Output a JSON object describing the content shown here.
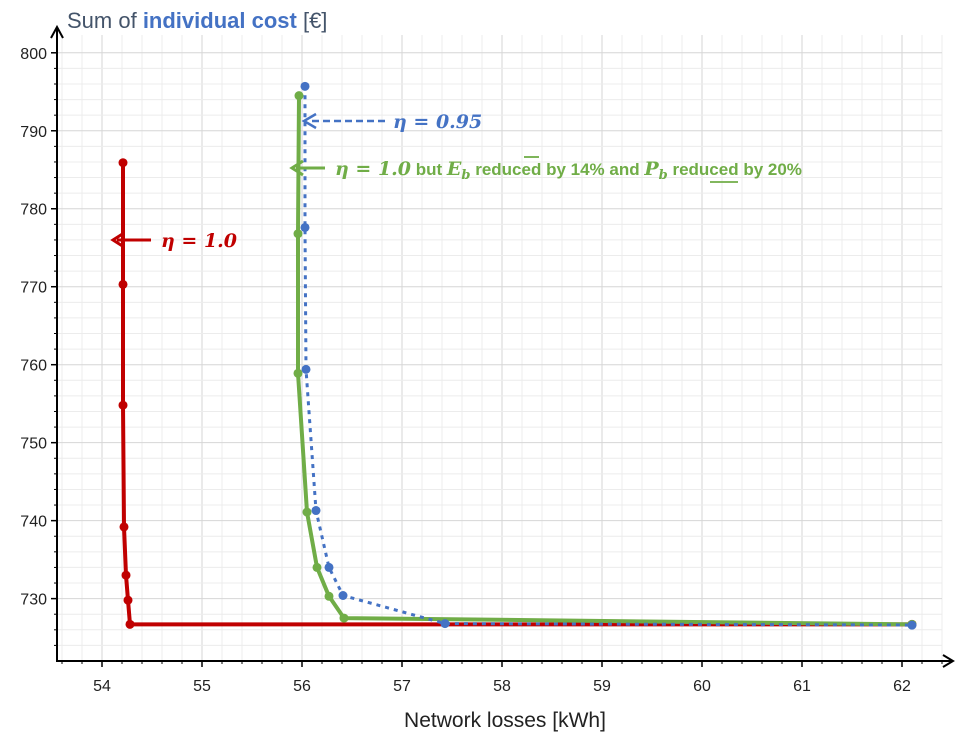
{
  "chart_data": {
    "type": "line",
    "title_prefix": "Sum of ",
    "title_bold": "individual cost",
    "title_suffix": " [€]",
    "xlabel": "Network losses [kWh]",
    "ylabel": "Sum of individual cost [€]",
    "xlim": [
      53.55,
      62.5
    ],
    "ylim": [
      722,
      801
    ],
    "xticks": [
      54,
      55,
      56,
      57,
      58,
      59,
      60,
      61,
      62
    ],
    "yticks": [
      730,
      740,
      750,
      760,
      770,
      780,
      790,
      800
    ],
    "grid": true,
    "series": [
      {
        "key": "red",
        "color": "#c00000",
        "style": "solid",
        "x": [
          54.21,
          54.21,
          54.21,
          54.22,
          54.24,
          54.26,
          54.28,
          62.1
        ],
        "y": [
          785.9,
          770.3,
          754.8,
          739.2,
          733.0,
          729.8,
          726.7,
          726.7
        ]
      },
      {
        "key": "green",
        "color": "#70ad47",
        "style": "solid",
        "x": [
          55.97,
          55.96,
          55.96,
          56.05,
          56.15,
          56.27,
          56.42,
          62.1
        ],
        "y": [
          794.5,
          776.8,
          758.9,
          741.1,
          734.0,
          730.3,
          727.5,
          726.7
        ]
      },
      {
        "key": "blue",
        "color": "#4472c4",
        "style": "dotted",
        "x": [
          56.03,
          56.03,
          56.04,
          56.14,
          56.27,
          56.41,
          57.43,
          62.1
        ],
        "y": [
          795.7,
          777.6,
          759.4,
          741.3,
          734.0,
          730.4,
          726.8,
          726.6
        ]
      }
    ],
    "annotations": {
      "blue": {
        "math": "η = 0.95",
        "color": "#4472c4"
      },
      "green": {
        "math": "η = 1.0",
        "text_but": " but ",
        "e": "E",
        "e_sub": "b",
        "text_mid": " reduced by 14% and ",
        "p": "P",
        "p_sub": "b",
        "text_end": " reduced by 20%",
        "color": "#70ad47"
      },
      "red": {
        "math": "η = 1.0",
        "color": "#c00000"
      }
    }
  }
}
